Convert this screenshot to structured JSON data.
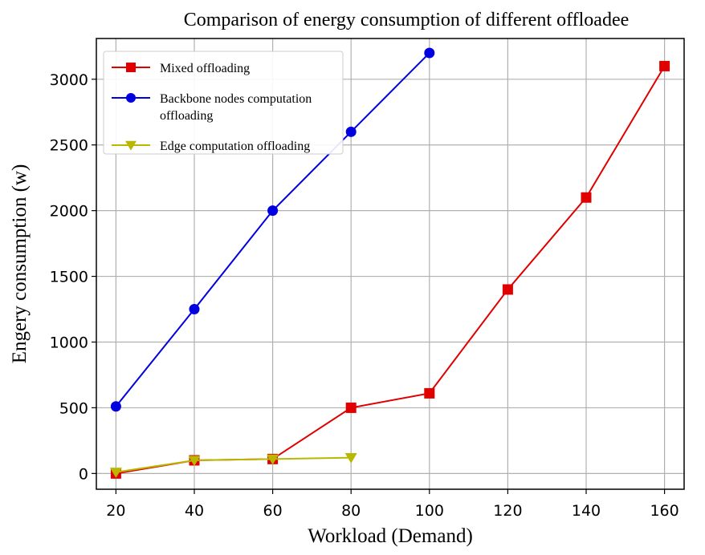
{
  "chart_data": {
    "type": "line",
    "title": "Comparison of energy consumption of different offloadee",
    "xlabel": "Workload (Demand)",
    "ylabel": "Engery consumption (w)",
    "xlim": [
      15,
      165
    ],
    "ylim": [
      -120,
      3310
    ],
    "xticks": [
      20,
      40,
      60,
      80,
      100,
      120,
      140,
      160
    ],
    "yticks": [
      0,
      500,
      1000,
      1500,
      2000,
      2500,
      3000
    ],
    "grid": true,
    "legend_position": "top-left",
    "series": [
      {
        "name": "Mixed offloading",
        "color": "#e00000",
        "marker": "square",
        "x": [
          20,
          40,
          60,
          80,
          100,
          120,
          140,
          160
        ],
        "values": [
          0,
          100,
          110,
          500,
          610,
          1400,
          2100,
          3100
        ]
      },
      {
        "name": "Backbone nodes computation offloading",
        "legend_lines": [
          "Backbone nodes computation",
          "offloading"
        ],
        "color": "#0000e0",
        "marker": "circle",
        "x": [
          20,
          40,
          60,
          80,
          100
        ],
        "values": [
          510,
          1250,
          2000,
          2600,
          3200
        ]
      },
      {
        "name": "Edge computation offloading",
        "color": "#b8b800",
        "marker": "triangle-down",
        "x": [
          20,
          40,
          60,
          80
        ],
        "values": [
          10,
          100,
          110,
          120
        ]
      }
    ]
  }
}
